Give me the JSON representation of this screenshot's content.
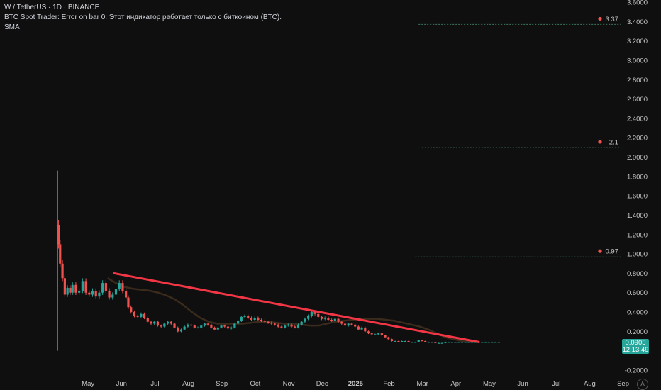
{
  "header": {
    "symbol_line": "W / TetherUS · 1D · BINANCE",
    "indicator_error": "BTC Spot Trader: Error on bar 0: Этот индикатор работает только с биткоином (BTC).",
    "indicator_sma": "SMA"
  },
  "price_badge": {
    "price": "0.0905",
    "countdown": "12:13:49"
  },
  "auto_button": "A",
  "colors": {
    "background": "#0f0f0f",
    "up_candle": "#26a69a",
    "down_candle": "#ef5350",
    "trendline": "#f23645",
    "sma": "#3a2b1c",
    "target_line": "#3d7a5f",
    "axis_text": "#c8c8c8"
  },
  "chart_data": {
    "type": "candlestick",
    "y_axis": {
      "min": -0.2,
      "max": 3.6,
      "ticks": [
        "-0.2000",
        "0.2000",
        "0.4000",
        "0.6000",
        "0.8000",
        "1.0000",
        "1.2000",
        "1.4000",
        "1.6000",
        "1.8000",
        "2.0000",
        "2.2000",
        "2.4000",
        "2.6000",
        "2.8000",
        "3.0000",
        "3.2000",
        "3.4000",
        "3.6000"
      ],
      "tick_values": [
        -0.2,
        0.2,
        0.4,
        0.6,
        0.8,
        1.0,
        1.2,
        1.4,
        1.6,
        1.8,
        2.0,
        2.2,
        2.4,
        2.6,
        2.8,
        3.0,
        3.2,
        3.4,
        3.6
      ]
    },
    "x_axis": {
      "labels": [
        "May",
        "Jun",
        "Jul",
        "Aug",
        "Sep",
        "Oct",
        "Nov",
        "Dec",
        "2025",
        "Feb",
        "Mar",
        "Apr",
        "May",
        "Jun",
        "Jul",
        "Aug",
        "Sep"
      ],
      "months_from_start": [
        1,
        2,
        3,
        4,
        5,
        6,
        7,
        8,
        9,
        10,
        11,
        12,
        13,
        14,
        15,
        16,
        17
      ]
    },
    "price_series": {
      "month_positions": [
        0.0,
        0.03,
        0.08,
        0.15,
        0.22,
        0.3,
        0.38,
        0.45,
        0.55,
        0.65,
        0.75,
        0.85,
        0.95,
        1.05,
        1.15,
        1.25,
        1.35,
        1.45,
        1.55,
        1.65,
        1.75,
        1.85,
        1.95,
        2.05,
        2.12,
        2.2,
        2.3,
        2.4,
        2.5,
        2.6,
        2.7,
        2.8,
        2.9,
        3.0,
        3.1,
        3.2,
        3.3,
        3.4,
        3.5,
        3.6,
        3.7,
        3.8,
        3.9,
        4.0,
        4.1,
        4.2,
        4.3,
        4.4,
        4.5,
        4.6,
        4.7,
        4.8,
        4.9,
        5.0,
        5.1,
        5.2,
        5.3,
        5.4,
        5.5,
        5.6,
        5.7,
        5.8,
        5.9,
        6.0,
        6.1,
        6.2,
        6.3,
        6.4,
        6.5,
        6.6,
        6.7,
        6.8,
        6.9,
        7.0,
        7.1,
        7.2,
        7.3,
        7.4,
        7.5,
        7.6,
        7.7,
        7.8,
        7.9,
        8.0,
        8.1,
        8.2,
        8.3,
        8.4,
        8.5,
        8.6,
        8.7,
        8.8,
        8.9,
        9.0,
        9.1,
        9.2,
        9.3,
        9.4,
        9.5,
        9.6,
        9.7,
        9.8,
        9.9,
        10.0,
        10.1,
        10.2,
        10.3,
        10.4,
        10.5,
        10.6,
        10.7,
        10.8,
        10.9,
        11.0,
        11.1,
        11.2,
        11.3,
        11.4,
        11.5,
        11.6,
        11.7,
        11.8,
        11.9,
        12.0,
        12.1,
        12.2,
        12.3,
        12.4,
        12.5,
        12.6,
        12.7,
        12.8,
        12.9,
        13.0,
        13.1,
        13.2
      ],
      "close": [
        1.3,
        1.1,
        0.9,
        0.75,
        0.58,
        0.65,
        0.6,
        0.68,
        0.6,
        0.62,
        0.72,
        0.6,
        0.58,
        0.62,
        0.56,
        0.6,
        0.7,
        0.62,
        0.55,
        0.58,
        0.64,
        0.7,
        0.62,
        0.55,
        0.45,
        0.4,
        0.36,
        0.35,
        0.38,
        0.34,
        0.3,
        0.28,
        0.3,
        0.26,
        0.25,
        0.28,
        0.3,
        0.28,
        0.24,
        0.2,
        0.22,
        0.25,
        0.27,
        0.26,
        0.24,
        0.24,
        0.26,
        0.28,
        0.27,
        0.24,
        0.22,
        0.24,
        0.26,
        0.25,
        0.23,
        0.24,
        0.28,
        0.31,
        0.35,
        0.36,
        0.34,
        0.32,
        0.34,
        0.32,
        0.31,
        0.3,
        0.29,
        0.28,
        0.27,
        0.25,
        0.24,
        0.26,
        0.27,
        0.25,
        0.24,
        0.27,
        0.3,
        0.33,
        0.36,
        0.4,
        0.38,
        0.35,
        0.33,
        0.34,
        0.32,
        0.31,
        0.33,
        0.3,
        0.28,
        0.26,
        0.28,
        0.27,
        0.25,
        0.22,
        0.24,
        0.2,
        0.18,
        0.17,
        0.17,
        0.18,
        0.16,
        0.14,
        0.12,
        0.1,
        0.1,
        0.09,
        0.1,
        0.1,
        0.09,
        0.09,
        0.09,
        0.11,
        0.1,
        0.09,
        0.09,
        0.09,
        0.08,
        0.08,
        0.08,
        0.09,
        0.09,
        0.09,
        0.09,
        0.09,
        0.09,
        0.09,
        0.09,
        0.09,
        0.09,
        0.09,
        0.09,
        0.09,
        0.09,
        0.09,
        0.09,
        0.09
      ]
    },
    "spike": {
      "month_position": 0.0,
      "high": 1.86,
      "low": 0.0
    },
    "sma_values": [
      0.75,
      0.7,
      0.66,
      0.64,
      0.63,
      0.62,
      0.6,
      0.57,
      0.53,
      0.47,
      0.4,
      0.34,
      0.3,
      0.28,
      0.28,
      0.28,
      0.28,
      0.29,
      0.3,
      0.3,
      0.29,
      0.28,
      0.28,
      0.27,
      0.26,
      0.26,
      0.28,
      0.3,
      0.31,
      0.32,
      0.33,
      0.33,
      0.33,
      0.32,
      0.31,
      0.29,
      0.27,
      0.25,
      0.22,
      0.18,
      0.14,
      0.12,
      0.1,
      0.09,
      0.09
    ],
    "trendline": {
      "start": {
        "month": 1.7,
        "price": 0.8
      },
      "end": {
        "month": 12.6,
        "price": 0.09
      }
    },
    "current_price": {
      "value": 0.0905,
      "label": "0.0905"
    },
    "targets": [
      {
        "value": 3.37,
        "label": "3.37",
        "line_start_month": 10.8
      },
      {
        "value": 2.1,
        "label": "2.1",
        "line_start_month": 10.9
      },
      {
        "value": 0.97,
        "label": "0.97",
        "line_start_month": 10.7
      }
    ]
  }
}
